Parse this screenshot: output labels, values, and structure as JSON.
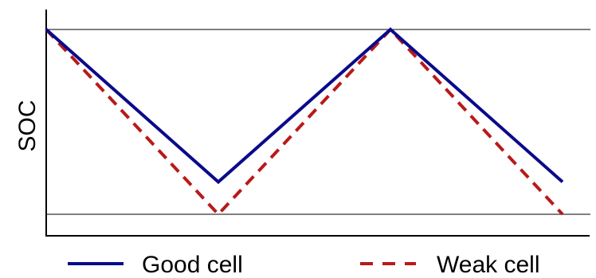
{
  "chart_data": {
    "type": "line",
    "title": "",
    "xlabel": "",
    "ylabel": "SOC",
    "x_ticks_shown": false,
    "y_ticks_shown": false,
    "grid": false,
    "legend_placement": "bottom",
    "reference_lines": [
      {
        "label": "",
        "value": 0.9
      },
      {
        "label": "",
        "value": 0.1
      }
    ],
    "xlim": [
      0,
      3
    ],
    "ylim": [
      0,
      1
    ],
    "series": [
      {
        "name": "Good cell",
        "color": "#0a0a8a",
        "style": "solid",
        "x": [
          0,
          1,
          2,
          3
        ],
        "y": [
          0.9,
          0.24,
          0.9,
          0.24
        ]
      },
      {
        "name": "Weak cell",
        "color": "#b81a1a",
        "style": "dashed",
        "x": [
          0,
          1,
          2,
          3
        ],
        "y": [
          0.9,
          0.1,
          0.9,
          0.1
        ]
      }
    ]
  }
}
